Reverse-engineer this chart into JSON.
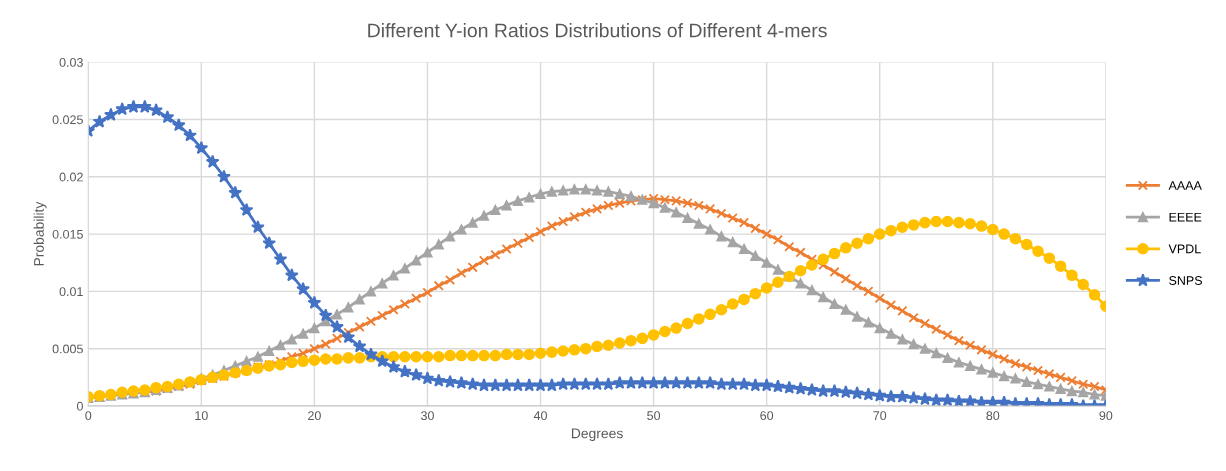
{
  "chart_data": {
    "type": "line",
    "title": "Different Y-ion Ratios Distributions of Different 4-mers",
    "xlabel": "Degrees",
    "ylabel": "Probability",
    "x": [
      0,
      1,
      2,
      3,
      4,
      5,
      6,
      7,
      8,
      9,
      10,
      11,
      12,
      13,
      14,
      15,
      16,
      17,
      18,
      19,
      20,
      21,
      22,
      23,
      24,
      25,
      26,
      27,
      28,
      29,
      30,
      31,
      32,
      33,
      34,
      35,
      36,
      37,
      38,
      39,
      40,
      41,
      42,
      43,
      44,
      45,
      46,
      47,
      48,
      49,
      50,
      51,
      52,
      53,
      54,
      55,
      56,
      57,
      58,
      59,
      60,
      61,
      62,
      63,
      64,
      65,
      66,
      67,
      68,
      69,
      70,
      71,
      72,
      73,
      74,
      75,
      76,
      77,
      78,
      79,
      80,
      81,
      82,
      83,
      84,
      85,
      86,
      87,
      88,
      89,
      90
    ],
    "series": [
      {
        "name": "AAAA",
        "color": "#ed7d31",
        "marker": "cross",
        "values": [
          null,
          null,
          null,
          null,
          null,
          0.0012,
          0.0013,
          0.0015,
          0.0017,
          0.0019,
          0.0022,
          0.0024,
          0.0026,
          0.0029,
          0.0031,
          0.0034,
          0.0036,
          0.0039,
          0.0043,
          0.0046,
          0.005,
          0.0054,
          0.0059,
          0.0064,
          0.0069,
          0.0074,
          0.0079,
          0.0084,
          0.0089,
          0.0094,
          0.0099,
          0.0105,
          0.011,
          0.0116,
          0.0121,
          0.0127,
          0.0132,
          0.0137,
          0.0142,
          0.0147,
          0.0152,
          0.0157,
          0.0161,
          0.0165,
          0.0169,
          0.0172,
          0.0175,
          0.0177,
          0.0179,
          0.018,
          0.0181,
          0.018,
          0.0179,
          0.0177,
          0.0175,
          0.0172,
          0.0168,
          0.0164,
          0.016,
          0.0155,
          0.015,
          0.0145,
          0.0139,
          0.0134,
          0.0128,
          0.0123,
          0.0117,
          0.0111,
          0.0105,
          0.01,
          0.0094,
          0.0088,
          0.0083,
          0.0077,
          0.0072,
          0.0067,
          0.0062,
          0.0057,
          0.0053,
          0.0049,
          0.0045,
          0.0041,
          0.0037,
          0.0034,
          0.0031,
          0.0028,
          0.0025,
          0.0022,
          0.0019,
          0.0017,
          0.0014
        ]
      },
      {
        "name": "EEEE",
        "color": "#a5a5a5",
        "marker": "triangle",
        "values": [
          0.0007,
          0.0008,
          0.0009,
          0.001,
          0.0011,
          0.0012,
          0.0014,
          0.0016,
          0.0018,
          0.0021,
          0.0024,
          0.0027,
          0.0031,
          0.0035,
          0.0039,
          0.0043,
          0.0048,
          0.0053,
          0.0058,
          0.0063,
          0.0068,
          0.0074,
          0.008,
          0.0086,
          0.0093,
          0.01,
          0.0107,
          0.0114,
          0.012,
          0.0127,
          0.0134,
          0.0141,
          0.0148,
          0.0154,
          0.016,
          0.0166,
          0.0171,
          0.0175,
          0.0179,
          0.0182,
          0.0185,
          0.0187,
          0.0188,
          0.0189,
          0.0189,
          0.0188,
          0.0187,
          0.0185,
          0.0183,
          0.018,
          0.0177,
          0.0173,
          0.0169,
          0.0164,
          0.0159,
          0.0154,
          0.0148,
          0.0143,
          0.0137,
          0.0131,
          0.0125,
          0.0119,
          0.0113,
          0.0107,
          0.0101,
          0.0095,
          0.0089,
          0.0084,
          0.0078,
          0.0073,
          0.0068,
          0.0063,
          0.0058,
          0.0054,
          0.005,
          0.0046,
          0.0042,
          0.0038,
          0.0035,
          0.0032,
          0.0029,
          0.0026,
          0.0024,
          0.0021,
          0.0019,
          0.0017,
          0.0015,
          0.0013,
          0.0012,
          0.001,
          0.0009
        ]
      },
      {
        "name": "VPDL",
        "color": "#ffc000",
        "marker": "circle",
        "values": [
          0.0008,
          0.0009,
          0.001,
          0.0012,
          0.0013,
          0.0014,
          0.0016,
          0.0017,
          0.0019,
          0.0021,
          0.0023,
          0.0025,
          0.0027,
          0.0029,
          0.0031,
          0.0033,
          0.0035,
          0.0036,
          0.0038,
          0.0039,
          0.004,
          0.0041,
          0.0041,
          0.0042,
          0.0042,
          0.0043,
          0.0043,
          0.0043,
          0.0043,
          0.0043,
          0.0043,
          0.0043,
          0.0044,
          0.0044,
          0.0044,
          0.0044,
          0.0044,
          0.0045,
          0.0045,
          0.0045,
          0.0046,
          0.0047,
          0.0048,
          0.0049,
          0.005,
          0.0052,
          0.0053,
          0.0055,
          0.0057,
          0.0059,
          0.0062,
          0.0065,
          0.0068,
          0.0072,
          0.0076,
          0.008,
          0.0084,
          0.0089,
          0.0093,
          0.0098,
          0.0103,
          0.0108,
          0.0113,
          0.0118,
          0.0123,
          0.0128,
          0.0133,
          0.0138,
          0.0142,
          0.0146,
          0.015,
          0.0153,
          0.0156,
          0.0158,
          0.016,
          0.0161,
          0.0161,
          0.016,
          0.0159,
          0.0157,
          0.0154,
          0.015,
          0.0146,
          0.0141,
          0.0135,
          0.0129,
          0.0122,
          0.0114,
          0.0106,
          0.0097,
          0.0087
        ]
      },
      {
        "name": "SNPS",
        "color": "#4472c4",
        "marker": "star",
        "values": [
          0.024,
          0.0248,
          0.0254,
          0.0259,
          0.0261,
          0.0261,
          0.0258,
          0.0252,
          0.0245,
          0.0236,
          0.0225,
          0.0213,
          0.02,
          0.0186,
          0.0171,
          0.0156,
          0.0142,
          0.0128,
          0.0114,
          0.0102,
          0.009,
          0.0079,
          0.0069,
          0.006,
          0.0052,
          0.0045,
          0.0039,
          0.0034,
          0.003,
          0.0027,
          0.0024,
          0.0022,
          0.0021,
          0.002,
          0.0019,
          0.0018,
          0.0018,
          0.0018,
          0.0018,
          0.0018,
          0.0018,
          0.0018,
          0.0019,
          0.0019,
          0.0019,
          0.0019,
          0.0019,
          0.002,
          0.002,
          0.002,
          0.002,
          0.002,
          0.002,
          0.002,
          0.002,
          0.002,
          0.0019,
          0.0019,
          0.0019,
          0.0018,
          0.0018,
          0.0017,
          0.0016,
          0.0015,
          0.0014,
          0.0013,
          0.0013,
          0.0012,
          0.0011,
          0.001,
          0.0009,
          0.0008,
          0.0008,
          0.0007,
          0.0006,
          0.0005,
          0.0005,
          0.0004,
          0.0004,
          0.0003,
          0.0003,
          0.0003,
          0.0002,
          0.0002,
          0.0002,
          0.0001,
          0.0001,
          0.0001,
          0.0,
          0.0,
          0.0
        ]
      }
    ],
    "xlim": [
      0,
      90
    ],
    "xticks": [
      0,
      10,
      20,
      30,
      40,
      50,
      60,
      70,
      80,
      90
    ],
    "ylim": [
      0,
      0.03
    ],
    "yticks": [
      0,
      0.005,
      0.01,
      0.015,
      0.02,
      0.025,
      0.03
    ],
    "grid": true,
    "legend": "right"
  }
}
